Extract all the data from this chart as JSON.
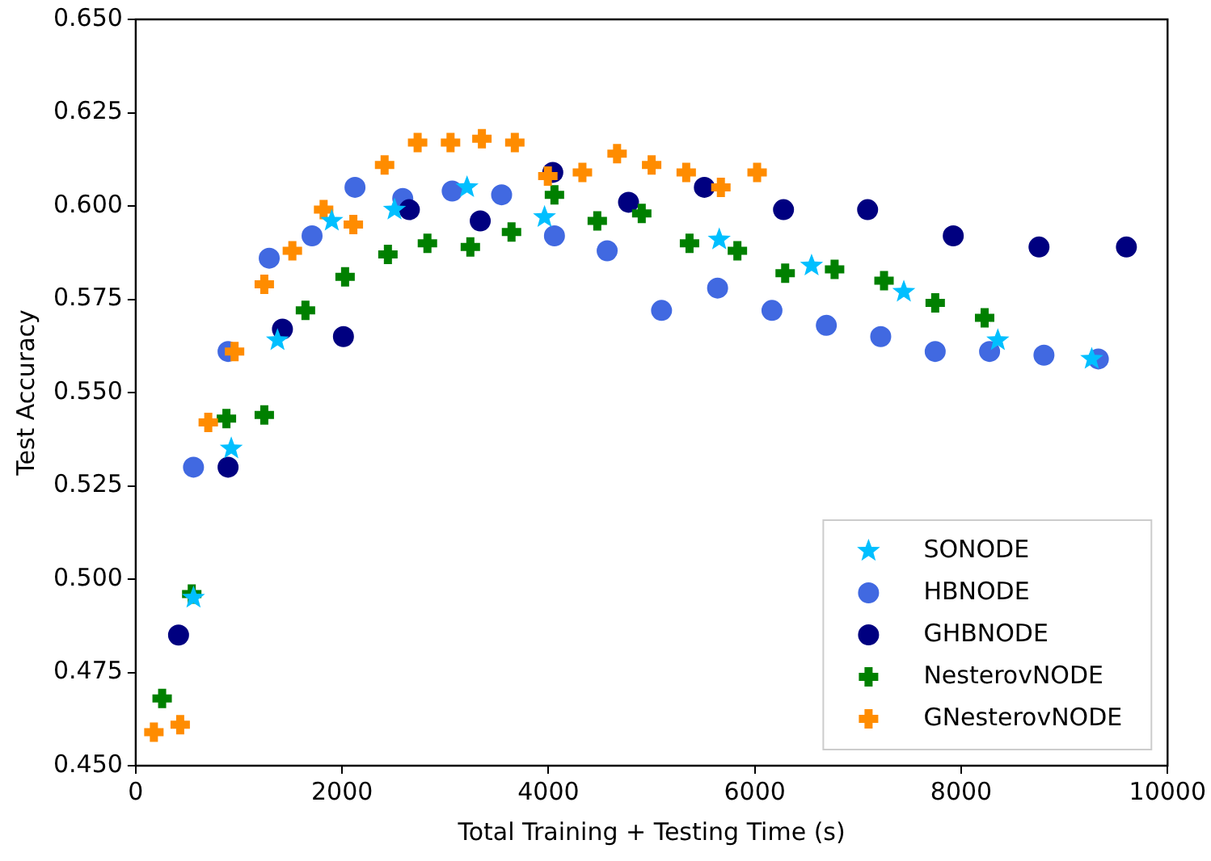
{
  "chart_data": {
    "type": "scatter",
    "xlabel": "Total Training + Testing Time (s)",
    "ylabel": "Test Accuracy",
    "xlim": [
      0,
      10000
    ],
    "xticks": [
      0,
      2000,
      4000,
      6000,
      8000,
      10000
    ],
    "ylim": [
      0.45,
      0.65
    ],
    "yticks": [
      {
        "value": 0.45,
        "label": "0.450"
      },
      {
        "value": 0.475,
        "label": "0.475"
      },
      {
        "value": 0.5,
        "label": "0.500"
      },
      {
        "value": 0.525,
        "label": "0.525"
      },
      {
        "value": 0.55,
        "label": "0.550"
      },
      {
        "value": 0.575,
        "label": "0.575"
      },
      {
        "value": 0.6,
        "label": "0.600"
      },
      {
        "value": 0.625,
        "label": "0.625"
      },
      {
        "value": 0.65,
        "label": "0.650"
      }
    ],
    "grid": false,
    "legend": "bottom right",
    "series": [
      {
        "name": "SONODE",
        "color": "#00bfff",
        "marker": "star",
        "x": [
          560,
          926,
          1374,
          1900,
          2508,
          3211,
          3962,
          5655,
          6550,
          7444,
          8355,
          9265
        ],
        "values": [
          0.495,
          0.535,
          0.564,
          0.596,
          0.599,
          0.605,
          0.597,
          0.591,
          0.584,
          0.577,
          0.564,
          0.559
        ]
      },
      {
        "name": "HBNODE",
        "color": "#4169e1",
        "marker": "circle",
        "x": [
          560,
          895,
          1294,
          1709,
          2125,
          2588,
          3067,
          3546,
          4058,
          4569,
          5096,
          5639,
          6166,
          6693,
          7220,
          7748,
          8275,
          8802,
          9329
        ],
        "values": [
          0.53,
          0.561,
          0.586,
          0.592,
          0.605,
          0.602,
          0.604,
          0.603,
          0.592,
          0.588,
          0.572,
          0.578,
          0.572,
          0.568,
          0.565,
          0.561,
          0.561,
          0.56,
          0.559
        ]
      },
      {
        "name": "GHBNODE",
        "color": "#000080",
        "marker": "circle",
        "x": [
          415,
          895,
          1422,
          2013,
          2652,
          3339,
          4042,
          4776,
          5511,
          6278,
          7093,
          7923,
          8754,
          9601
        ],
        "values": [
          0.485,
          0.53,
          0.567,
          0.565,
          0.599,
          0.596,
          0.609,
          0.601,
          0.605,
          0.599,
          0.599,
          0.592,
          0.589,
          0.589
        ]
      },
      {
        "name": "NesterovNODE",
        "color": "#008000",
        "marker": "cross",
        "x": [
          256,
          543,
          879,
          1246,
          1645,
          2029,
          2444,
          2827,
          3243,
          3642,
          4058,
          4473,
          4904,
          5367,
          5831,
          6294,
          6773,
          7252,
          7748,
          8227
        ],
        "values": [
          0.468,
          0.496,
          0.543,
          0.544,
          0.572,
          0.581,
          0.587,
          0.59,
          0.589,
          0.593,
          0.603,
          0.596,
          0.598,
          0.59,
          0.588,
          0.582,
          0.583,
          0.58,
          0.574,
          0.57
        ]
      },
      {
        "name": "GNesterovNODE",
        "color": "#ff8c00",
        "marker": "cross",
        "x": [
          176,
          431,
          703,
          958,
          1246,
          1518,
          1821,
          2109,
          2412,
          2732,
          3051,
          3355,
          3674,
          3994,
          4329,
          4665,
          5000,
          5335,
          5671,
          6022
        ],
        "values": [
          0.459,
          0.461,
          0.542,
          0.561,
          0.579,
          0.588,
          0.599,
          0.595,
          0.611,
          0.617,
          0.617,
          0.618,
          0.617,
          0.608,
          0.609,
          0.614,
          0.611,
          0.609,
          0.605,
          0.609
        ]
      }
    ]
  }
}
